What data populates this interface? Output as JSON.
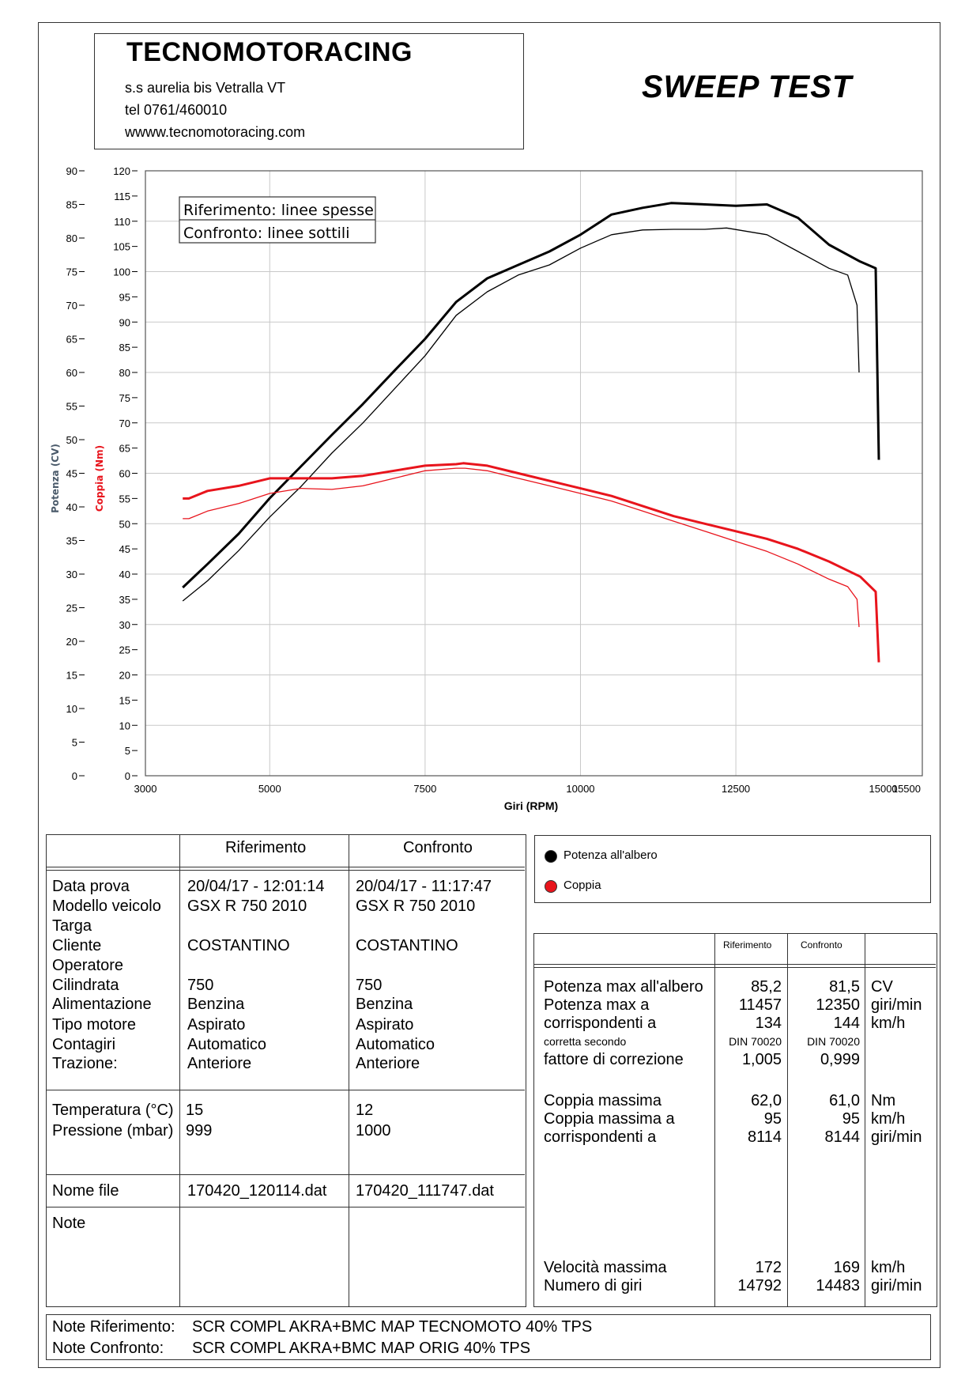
{
  "header": {
    "company_name": "TECNOMOTORACING",
    "address": "s.s aurelia bis  Vetralla  VT",
    "phone": "tel 0761/460010",
    "website": "wwww.tecnomotoracing.com",
    "test_title": "SWEEP TEST"
  },
  "chart_data": {
    "type": "line",
    "xlabel": "Giri (RPM)",
    "ylabel_left": "Potenza (CV)",
    "ylabel_right": "Coppia (Nm)",
    "xlim": [
      3000,
      15500
    ],
    "ylim_power": [
      0,
      90
    ],
    "ylim_torque": [
      0,
      120
    ],
    "x_ticks": [
      "3000",
      "5000",
      "7500",
      "10000",
      "12500",
      "15000",
      "15500"
    ],
    "y_ticks_power": [
      "90",
      "85",
      "80",
      "75",
      "70",
      "65",
      "60",
      "55",
      "50",
      "45",
      "40",
      "35",
      "30",
      "25",
      "20",
      "15",
      "10",
      "5",
      "0"
    ],
    "y_ticks_torque": [
      "120",
      "115",
      "110",
      "105",
      "100",
      "95",
      "90",
      "85",
      "80",
      "75",
      "70",
      "65",
      "60",
      "55",
      "50",
      "45",
      "40",
      "35",
      "30",
      "25",
      "20",
      "15",
      "10",
      "5",
      "0"
    ],
    "grid": true,
    "annotation_lines": [
      "Riferimento: linee spesse",
      "Confronto: linee sottili"
    ],
    "series": [
      {
        "name": "Potenza all'albero",
        "axis": "power",
        "style": "thick",
        "color": "#000000",
        "x": [
          3600,
          4000,
          4500,
          5000,
          5500,
          6000,
          6500,
          7000,
          7500,
          8000,
          8500,
          9000,
          9500,
          10000,
          10500,
          11000,
          11457,
          12000,
          12500,
          13000,
          13500,
          14000,
          14500,
          14750,
          14800
        ],
        "y": [
          28,
          31.5,
          36,
          41.3,
          46,
          50.7,
          55.3,
          60.2,
          65,
          70.5,
          74,
          76,
          78,
          80.5,
          83.5,
          84.5,
          85.2,
          85,
          84.8,
          85,
          83,
          79,
          76.5,
          75.5,
          47
        ]
      },
      {
        "name": "Potenza all'albero",
        "axis": "power",
        "style": "thin",
        "color": "#000000",
        "x": [
          3600,
          4000,
          4500,
          5000,
          5500,
          6000,
          6500,
          7000,
          7500,
          8000,
          8500,
          9000,
          9500,
          10000,
          10500,
          11000,
          11500,
          12000,
          12350,
          13000,
          13500,
          14000,
          14300,
          14450,
          14483
        ],
        "y": [
          26,
          29,
          33.5,
          38.5,
          43,
          48,
          52.5,
          57.5,
          62.5,
          68.5,
          72,
          74.5,
          76,
          78.5,
          80.5,
          81.2,
          81.3,
          81.3,
          81.5,
          80.5,
          78,
          75.5,
          74.5,
          70,
          60
        ]
      },
      {
        "name": "Coppia",
        "axis": "torque",
        "style": "thick",
        "color": "#e8141c",
        "x": [
          3600,
          3700,
          4000,
          4500,
          5000,
          5500,
          6000,
          6500,
          7000,
          7500,
          8000,
          8114,
          8500,
          9000,
          9500,
          10000,
          10500,
          11000,
          11500,
          12000,
          12500,
          13000,
          13500,
          14000,
          14500,
          14750,
          14800
        ],
        "y": [
          55,
          55,
          56.5,
          57.5,
          59,
          59,
          59,
          59.5,
          60.5,
          61.5,
          61.8,
          62,
          61.5,
          60,
          58.5,
          57,
          55.5,
          53.5,
          51.5,
          50,
          48.5,
          47,
          45,
          42.5,
          39.5,
          36.5,
          22.5
        ]
      },
      {
        "name": "Coppia",
        "axis": "torque",
        "style": "thin",
        "color": "#e8141c",
        "x": [
          3600,
          3700,
          4000,
          4500,
          5000,
          5500,
          6000,
          6500,
          7000,
          7500,
          8000,
          8144,
          8500,
          9000,
          9500,
          10000,
          10500,
          11000,
          11500,
          12000,
          12500,
          13000,
          13500,
          14000,
          14300,
          14450,
          14483
        ],
        "y": [
          51,
          51,
          52.5,
          54,
          56,
          57,
          56.8,
          57.5,
          59,
          60.5,
          61,
          61,
          60.5,
          59,
          57.5,
          56,
          54.5,
          52.5,
          50.5,
          48.5,
          46.5,
          44.5,
          42,
          39,
          37.5,
          35,
          29.5
        ]
      }
    ]
  },
  "legend": {
    "items": [
      {
        "label": "Potenza all'albero",
        "color": "#000000"
      },
      {
        "label": "Coppia",
        "color": "#e8141c"
      }
    ]
  },
  "info_table": {
    "col_ref": "Riferimento",
    "col_cmp": "Confronto",
    "labels": {
      "data_prova": "Data prova",
      "modello": "Modello veicolo",
      "targa": "Targa",
      "cliente": "Cliente",
      "operatore": "Operatore",
      "cilindrata": "Cilindrata",
      "alimentazione": "Alimentazione",
      "tipo_motore": "Tipo motore",
      "contagiri": "Contagiri",
      "trazione": "Trazione:",
      "temperatura": "Temperatura (°C)",
      "pressione": "Pressione (mbar)",
      "nome_file": "Nome file",
      "note": "Note"
    },
    "ref": {
      "data_prova": "20/04/17 - 12:01:14",
      "modello": "GSX R 750  2010",
      "cliente": "COSTANTINO",
      "cilindrata": "750",
      "alimentazione": "Benzina",
      "tipo_motore": "Aspirato",
      "contagiri": "Automatico",
      "trazione": "Anteriore",
      "temperatura": "15",
      "pressione": "999",
      "nome_file": "170420_120114.dat"
    },
    "cmp": {
      "data_prova": "20/04/17 - 11:17:47",
      "modello": "GSX R 750  2010",
      "cliente": "COSTANTINO",
      "cilindrata": "750",
      "alimentazione": "Benzina",
      "tipo_motore": "Aspirato",
      "contagiri": "Automatico",
      "trazione": "Anteriore",
      "temperatura": "12",
      "pressione": "1000",
      "nome_file": "170420_111747.dat"
    }
  },
  "results_table": {
    "col_ref": "Riferimento",
    "col_cmp": "Confronto",
    "rows": {
      "pot_max": {
        "label": "Potenza max all'albero",
        "ref": "85,2",
        "cmp": "81,5",
        "unit": "CV"
      },
      "pot_max_a": {
        "label": "Potenza max a",
        "ref": "11457",
        "cmp": "12350",
        "unit": "giri/min"
      },
      "pot_corr": {
        "label": "corrispondenti a",
        "ref": "134",
        "cmp": "144",
        "unit": "km/h"
      },
      "corretta": {
        "label": "corretta secondo",
        "ref": "DIN 70020",
        "cmp": "DIN 70020"
      },
      "fattore": {
        "label": "fattore di correzione",
        "ref": "1,005",
        "cmp": "0,999"
      },
      "coppia_max": {
        "label": "Coppia massima",
        "ref": "62,0",
        "cmp": "61,0",
        "unit": "Nm"
      },
      "coppia_max_a": {
        "label": "Coppia massima a",
        "ref": "95",
        "cmp": "95",
        "unit": "km/h"
      },
      "coppia_corr": {
        "label": "corrispondenti a",
        "ref": "8114",
        "cmp": "8144",
        "unit": "giri/min"
      },
      "vel_max": {
        "label": "Velocità massima",
        "ref": "172",
        "cmp": "169",
        "unit": "km/h"
      },
      "num_giri": {
        "label": "Numero di giri",
        "ref": "14792",
        "cmp": "14483",
        "unit": "giri/min"
      }
    }
  },
  "notes": {
    "ref_label": "Note Riferimento:",
    "ref_value": "SCR COMPL AKRA+BMC MAP TECNOMOTO 40% TPS",
    "cmp_label": "Note Confronto:",
    "cmp_value": "SCR COMPL AKRA+BMC MAP ORIG 40% TPS"
  }
}
